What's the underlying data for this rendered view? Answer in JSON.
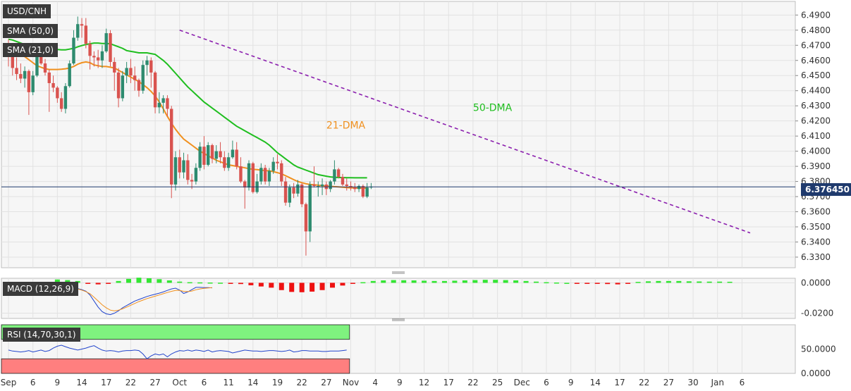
{
  "chart_data": {
    "type": "candlestick",
    "symbol_label": "USD/CNH",
    "price_axis": {
      "ylim": [
        6.323,
        6.499
      ],
      "ticks": [
        "6.4900",
        "6.4800",
        "6.4700",
        "6.4600",
        "6.4500",
        "6.4400",
        "6.4300",
        "6.4200",
        "6.4100",
        "6.4000",
        "6.3900",
        "6.3800",
        "6.3700",
        "6.3600",
        "6.3500",
        "6.3400",
        "6.3300"
      ],
      "tick_values": [
        6.49,
        6.48,
        6.47,
        6.46,
        6.45,
        6.44,
        6.43,
        6.42,
        6.41,
        6.4,
        6.39,
        6.38,
        6.37,
        6.36,
        6.35,
        6.34,
        6.33
      ],
      "current_price_label": "6.376450",
      "current_price": 6.37645
    },
    "x_axis": {
      "ticks": [
        "Sep",
        "6",
        "9",
        "14",
        "17",
        "22",
        "27",
        "Oct",
        "6",
        "11",
        "14",
        "19",
        "22",
        "27",
        "Nov",
        "4",
        "9",
        "12",
        "17",
        "22",
        "25",
        "Dec",
        "6",
        "9",
        "14",
        "17",
        "22",
        "27",
        "30",
        "Jan",
        "6"
      ],
      "tick_index": [
        0,
        6,
        12,
        18,
        24,
        30,
        36,
        42,
        48,
        54,
        60,
        66,
        72,
        78,
        84,
        90,
        96,
        102,
        108,
        114,
        120,
        126,
        132,
        138,
        144,
        150,
        156,
        162,
        168,
        174,
        180
      ]
    },
    "candles": [
      [
        6.4715,
        6.474,
        6.456,
        6.464
      ],
      [
        6.464,
        6.47,
        6.45,
        6.455
      ],
      [
        6.455,
        6.462,
        6.447,
        6.451
      ],
      [
        6.451,
        6.458,
        6.445,
        6.448
      ],
      [
        6.448,
        6.456,
        6.442,
        6.453
      ],
      [
        6.453,
        6.454,
        6.424,
        6.439
      ],
      [
        6.439,
        6.453,
        6.437,
        6.45
      ],
      [
        6.45,
        6.469,
        6.449,
        6.466
      ],
      [
        6.466,
        6.47,
        6.457,
        6.458
      ],
      [
        6.458,
        6.461,
        6.45,
        6.452
      ],
      [
        6.452,
        6.454,
        6.426,
        6.445
      ],
      [
        6.445,
        6.45,
        6.439,
        6.442
      ],
      [
        6.442,
        6.443,
        6.432,
        6.435
      ],
      [
        6.435,
        6.439,
        6.426,
        6.428
      ],
      [
        6.428,
        6.445,
        6.425,
        6.443
      ],
      [
        6.443,
        6.46,
        6.442,
        6.458
      ],
      [
        6.458,
        6.48,
        6.457,
        6.475
      ],
      [
        6.475,
        6.489,
        6.473,
        6.484
      ],
      [
        6.484,
        6.488,
        6.475,
        6.483
      ],
      [
        6.483,
        6.488,
        6.468,
        6.471
      ],
      [
        6.471,
        6.473,
        6.454,
        6.463
      ],
      [
        6.463,
        6.466,
        6.456,
        6.462
      ],
      [
        6.462,
        6.467,
        6.455,
        6.46
      ],
      [
        6.46,
        6.47,
        6.455,
        6.466
      ],
      [
        6.466,
        6.481,
        6.465,
        6.478
      ],
      [
        6.478,
        6.48,
        6.456,
        6.459
      ],
      [
        6.459,
        6.462,
        6.44,
        6.452
      ],
      [
        6.452,
        6.455,
        6.429,
        6.435
      ],
      [
        6.435,
        6.453,
        6.433,
        6.45
      ],
      [
        6.45,
        6.459,
        6.445,
        6.455
      ],
      [
        6.455,
        6.461,
        6.445,
        6.45
      ],
      [
        6.45,
        6.456,
        6.44,
        6.447
      ],
      [
        6.447,
        6.448,
        6.436,
        6.44
      ],
      [
        6.44,
        6.46,
        6.438,
        6.457
      ],
      [
        6.457,
        6.463,
        6.45,
        6.46
      ],
      [
        6.46,
        6.462,
        6.442,
        6.452
      ],
      [
        6.452,
        6.453,
        6.425,
        6.429
      ],
      [
        6.429,
        6.439,
        6.425,
        6.432
      ],
      [
        6.432,
        6.437,
        6.425,
        6.435
      ],
      [
        6.435,
        6.437,
        6.423,
        6.428
      ],
      [
        6.428,
        6.43,
        6.369,
        6.378
      ],
      [
        6.378,
        6.4,
        6.374,
        6.396
      ],
      [
        6.396,
        6.401,
        6.382,
        6.386
      ],
      [
        6.386,
        6.399,
        6.382,
        6.394
      ],
      [
        6.394,
        6.398,
        6.378,
        6.381
      ],
      [
        6.381,
        6.385,
        6.375,
        6.38
      ],
      [
        6.38,
        6.392,
        6.378,
        6.389
      ],
      [
        6.389,
        6.406,
        6.387,
        6.403
      ],
      [
        6.403,
        6.41,
        6.388,
        6.391
      ],
      [
        6.391,
        6.406,
        6.39,
        6.404
      ],
      [
        6.404,
        6.405,
        6.392,
        6.395
      ],
      [
        6.395,
        6.404,
        6.392,
        6.4
      ],
      [
        6.4,
        6.406,
        6.392,
        6.396
      ],
      [
        6.396,
        6.4,
        6.387,
        6.389
      ],
      [
        6.389,
        6.399,
        6.387,
        6.396
      ],
      [
        6.396,
        6.407,
        6.395,
        6.401
      ],
      [
        6.401,
        6.406,
        6.388,
        6.39
      ],
      [
        6.39,
        6.396,
        6.379,
        6.38
      ],
      [
        6.38,
        6.381,
        6.362,
        6.376
      ],
      [
        6.376,
        6.394,
        6.374,
        6.392
      ],
      [
        6.392,
        6.393,
        6.372,
        6.373
      ],
      [
        6.373,
        6.385,
        6.372,
        6.38
      ],
      [
        6.38,
        6.392,
        6.378,
        6.389
      ],
      [
        6.389,
        6.391,
        6.378,
        6.38
      ],
      [
        6.38,
        6.389,
        6.377,
        6.387
      ],
      [
        6.387,
        6.396,
        6.385,
        6.393
      ],
      [
        6.393,
        6.398,
        6.388,
        6.392
      ],
      [
        6.392,
        6.394,
        6.377,
        6.38
      ],
      [
        6.38,
        6.383,
        6.364,
        6.366
      ],
      [
        6.366,
        6.378,
        6.363,
        6.376
      ],
      [
        6.376,
        6.379,
        6.369,
        6.372
      ],
      [
        6.372,
        6.381,
        6.37,
        6.378
      ],
      [
        6.378,
        6.379,
        6.363,
        6.365
      ],
      [
        6.365,
        6.366,
        6.331,
        6.347
      ],
      [
        6.347,
        6.38,
        6.34,
        6.378
      ],
      [
        6.378,
        6.39,
        6.376,
        6.377
      ],
      [
        6.377,
        6.38,
        6.37,
        6.377
      ],
      [
        6.377,
        6.382,
        6.371,
        6.378
      ],
      [
        6.378,
        6.38,
        6.371,
        6.375
      ],
      [
        6.375,
        6.381,
        6.373,
        6.38
      ],
      [
        6.38,
        6.394,
        6.378,
        6.388
      ],
      [
        6.388,
        6.389,
        6.382,
        6.383
      ],
      [
        6.383,
        6.385,
        6.377,
        6.378
      ],
      [
        6.378,
        6.382,
        6.374,
        6.377
      ],
      [
        6.377,
        6.38,
        6.374,
        6.376
      ],
      [
        6.376,
        6.379,
        6.373,
        6.375
      ],
      [
        6.375,
        6.378,
        6.373,
        6.377
      ],
      [
        6.377,
        6.378,
        6.369,
        6.37
      ],
      [
        6.37,
        6.379,
        6.369,
        6.376
      ],
      [
        6.376,
        6.379,
        6.375,
        6.3765
      ]
    ],
    "sma50": [
      6.474,
      6.4735,
      6.4725,
      6.4715,
      6.4705,
      6.47,
      6.4695,
      6.469,
      6.4688,
      6.4685,
      6.468,
      6.4675,
      6.4672,
      6.467,
      6.467,
      6.4675,
      6.468,
      6.469,
      6.4698,
      6.4705,
      6.471,
      6.4715,
      6.4715,
      6.4712,
      6.4712,
      6.471,
      6.47,
      6.469,
      6.468,
      6.4665,
      6.466,
      6.4655,
      6.465,
      6.465,
      6.465,
      6.4645,
      6.464,
      6.462,
      6.46,
      6.4575,
      6.4545,
      6.4515,
      6.4485,
      6.4455,
      6.4425,
      6.44,
      6.4375,
      6.435,
      6.4325,
      6.4305,
      6.4285,
      6.4265,
      6.4245,
      6.4225,
      6.4205,
      6.4185,
      6.4165,
      6.415,
      6.4135,
      6.412,
      6.4105,
      6.409,
      6.4075,
      6.406,
      6.404,
      6.4015,
      6.399,
      6.397,
      6.395,
      6.393,
      6.391,
      6.3895,
      6.3885,
      6.3875,
      6.3865,
      6.3855,
      6.3845,
      6.384,
      6.3835,
      6.383,
      6.3828,
      6.3826,
      6.3826,
      6.3825,
      6.3825,
      6.3824,
      6.3824,
      6.3824,
      6.3824
    ],
    "sma21": [
      6.468,
      6.467,
      6.4655,
      6.464,
      6.4625,
      6.4605,
      6.4585,
      6.4565,
      6.4555,
      6.4545,
      6.454,
      6.454,
      6.454,
      6.4542,
      6.4545,
      6.455,
      6.456,
      6.4575,
      6.4585,
      6.459,
      6.4585,
      6.457,
      6.4565,
      6.456,
      6.456,
      6.4555,
      6.455,
      6.4535,
      6.452,
      6.4505,
      6.449,
      6.4475,
      6.446,
      6.444,
      6.442,
      6.4395,
      6.4365,
      6.4325,
      6.428,
      6.423,
      6.4185,
      6.4145,
      6.411,
      6.408,
      6.406,
      6.404,
      6.402,
      6.4,
      6.3985,
      6.397,
      6.3955,
      6.394,
      6.393,
      6.392,
      6.391,
      6.3905,
      6.39,
      6.3895,
      6.389,
      6.3885,
      6.388,
      6.3878,
      6.3875,
      6.3872,
      6.387,
      6.3865,
      6.3858,
      6.385,
      6.3838,
      6.3825,
      6.3812,
      6.38,
      6.3792,
      6.3785,
      6.378,
      6.3778,
      6.3775,
      6.3772,
      6.377,
      6.3768,
      6.3766,
      6.3764,
      6.3762,
      6.376,
      6.3758,
      6.3757,
      6.3756,
      6.3756,
      6.3756
    ],
    "trendline": {
      "from": [
        42,
        6.48
      ],
      "to": [
        182,
        6.346
      ]
    },
    "annotations": [
      {
        "text": "50-DMA",
        "index": 114,
        "value": 6.4265,
        "color": "#1fbe1f"
      },
      {
        "text": "21-DMA",
        "index": 78,
        "value": 6.415,
        "color": "#f0901e"
      }
    ],
    "legend_labels": {
      "sma50": "SMA (50,0)",
      "sma21": "SMA (21,0)"
    },
    "macd": {
      "label": "MACD (12,26,9)",
      "ticks": [
        "0.0000",
        "-0.0200"
      ],
      "tick_values": [
        0.0,
        -0.02
      ],
      "ylim": [
        -0.0235,
        0.003
      ],
      "hist_index_start": 12,
      "hist_step": 2.5,
      "hist": [
        0.0022,
        0.0018,
        0.0012,
        -0.0004,
        -0.001,
        -0.0004,
        0.0012,
        0.0026,
        0.0034,
        0.003,
        0.0024,
        0.0016,
        0.0008,
        0.0004,
        0.0003,
        0.0002,
        0.0001,
        -0.0002,
        -0.0008,
        -0.0016,
        -0.0024,
        -0.0032,
        -0.0048,
        -0.006,
        -0.0062,
        -0.0058,
        -0.0048,
        -0.0032,
        -0.0018,
        -0.0006,
        0.0004,
        0.0012,
        0.0016,
        0.0018,
        0.0017,
        0.0016,
        0.0014,
        0.0012,
        0.0012,
        0.0014,
        0.0016,
        0.0018,
        0.002,
        0.002,
        0.0018,
        0.0016,
        0.0012,
        0.0008,
        0.0004,
        0.0002,
        0.0,
        -0.0002,
        -0.0004,
        -0.0006,
        -0.0008,
        -0.001,
        -0.0004,
        0.0006,
        0.001,
        0.0012,
        0.0012,
        0.0012,
        0.001,
        0.0009,
        0.0008,
        0.0008,
        0.0007
      ],
      "macd_line": [
        -0.0045,
        -0.005,
        -0.006,
        -0.0065,
        -0.007,
        -0.0068,
        -0.006,
        -0.004,
        -0.0025,
        -0.0015,
        -0.001,
        -0.0008,
        -0.0012,
        -0.0018,
        -0.0025,
        -0.0028,
        -0.0032,
        -0.0038,
        -0.0045,
        -0.0055,
        -0.008,
        -0.012,
        -0.016,
        -0.019,
        -0.0205,
        -0.021,
        -0.02,
        -0.0185,
        -0.0165,
        -0.015,
        -0.0135,
        -0.012,
        -0.011,
        -0.01,
        -0.009,
        -0.0082,
        -0.0075,
        -0.0068,
        -0.006,
        -0.005,
        -0.004,
        -0.0035,
        -0.0048,
        -0.007,
        -0.006,
        -0.0045,
        -0.003,
        -0.003,
        -0.0032,
        -0.0032,
        -0.0033
      ],
      "signal_line": [
        -0.003,
        -0.0035,
        -0.0042,
        -0.005,
        -0.0058,
        -0.0064,
        -0.0066,
        -0.0062,
        -0.0054,
        -0.0046,
        -0.004,
        -0.0034,
        -0.003,
        -0.0028,
        -0.0028,
        -0.003,
        -0.0034,
        -0.004,
        -0.0048,
        -0.0058,
        -0.0072,
        -0.0095,
        -0.012,
        -0.0145,
        -0.0165,
        -0.018,
        -0.0185,
        -0.018,
        -0.0172,
        -0.016,
        -0.0148,
        -0.0136,
        -0.0124,
        -0.0114,
        -0.0104,
        -0.0096,
        -0.0088,
        -0.008,
        -0.0072,
        -0.0064,
        -0.0056,
        -0.005,
        -0.005,
        -0.0056,
        -0.0058,
        -0.0054,
        -0.0046,
        -0.004,
        -0.0036,
        -0.0034,
        -0.0032
      ]
    },
    "rsi": {
      "label": "RSI (14,70,30,1)",
      "ticks": [
        "50.0000",
        "0.0000"
      ],
      "tick_values": [
        50,
        0
      ],
      "ylim": [
        0,
        100
      ],
      "upper": 70,
      "lower": 30,
      "values": [
        48,
        46,
        45,
        44,
        45,
        47,
        44,
        46,
        48,
        45,
        47,
        52,
        56,
        58,
        55,
        52,
        50,
        48,
        50,
        52,
        55,
        57,
        52,
        48,
        46,
        47,
        46,
        44,
        46,
        47,
        47,
        48,
        47,
        40,
        30,
        36,
        40,
        38,
        40,
        34,
        40,
        44,
        47,
        46,
        48,
        46,
        48,
        47,
        45,
        48,
        44,
        46,
        47,
        46,
        45,
        42,
        44,
        46,
        48,
        47,
        46,
        46,
        45,
        46,
        47,
        47,
        46,
        45,
        46,
        48,
        44,
        45,
        47,
        47,
        46,
        46,
        46,
        45,
        45,
        46,
        46,
        46,
        47,
        48
      ]
    }
  }
}
